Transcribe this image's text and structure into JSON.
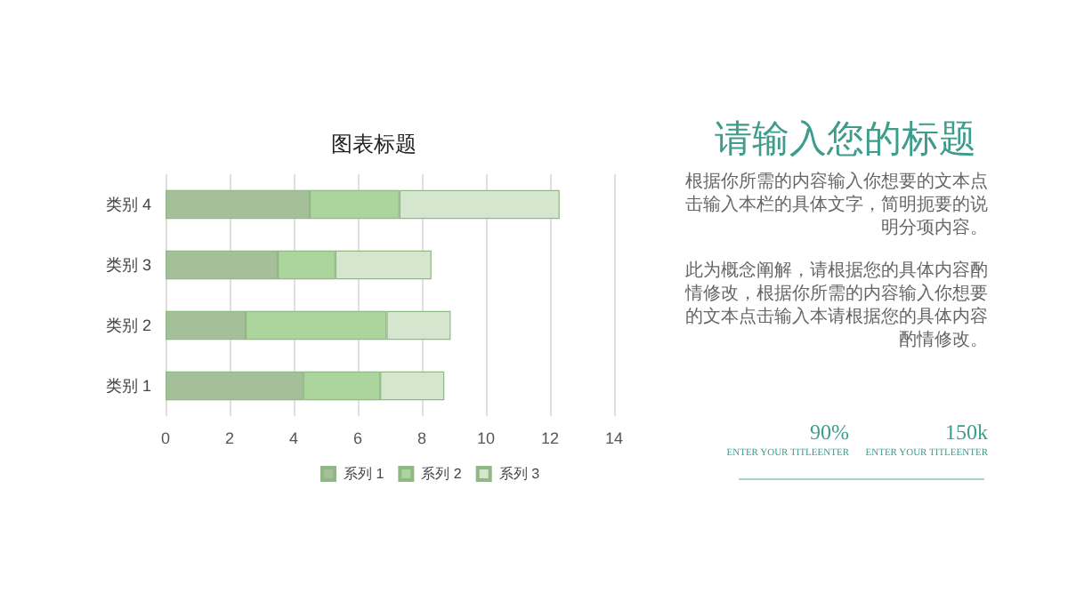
{
  "chart_data": {
    "type": "bar",
    "orientation": "horizontal",
    "stacked": true,
    "title": "图表标题",
    "categories": [
      "类别 4",
      "类别 3",
      "类别 2",
      "类别 1"
    ],
    "series": [
      {
        "name": "系列 1",
        "color": "#a5bf9b",
        "values": [
          4.5,
          3.5,
          2.5,
          4.3
        ]
      },
      {
        "name": "系列 2",
        "color": "#acd59d",
        "values": [
          2.8,
          1.8,
          4.4,
          2.4
        ]
      },
      {
        "name": "系列 3",
        "color": "#d5e6cf",
        "values": [
          5,
          3,
          2,
          2
        ]
      }
    ],
    "xlim": [
      0,
      14
    ],
    "xticks": [
      0,
      2,
      4,
      6,
      8,
      10,
      12,
      14
    ],
    "grid": "x",
    "legend": "bottom",
    "annotations": [
      "请输入您的标题",
      "根据你所需的内容输入你想要的文本点击输入本栏的具体文字，简明扼要的说明分项内容。",
      "此为概念阐解，请根据您的具体内容酌情修改，根据你所需的内容输入你想要的文本点击输入本请根据您的具体内容酌情修改。",
      "90%",
      "ENTER YOUR TITLEENTER",
      "150k",
      "ENTER YOUR TITLEENTER"
    ]
  }
}
